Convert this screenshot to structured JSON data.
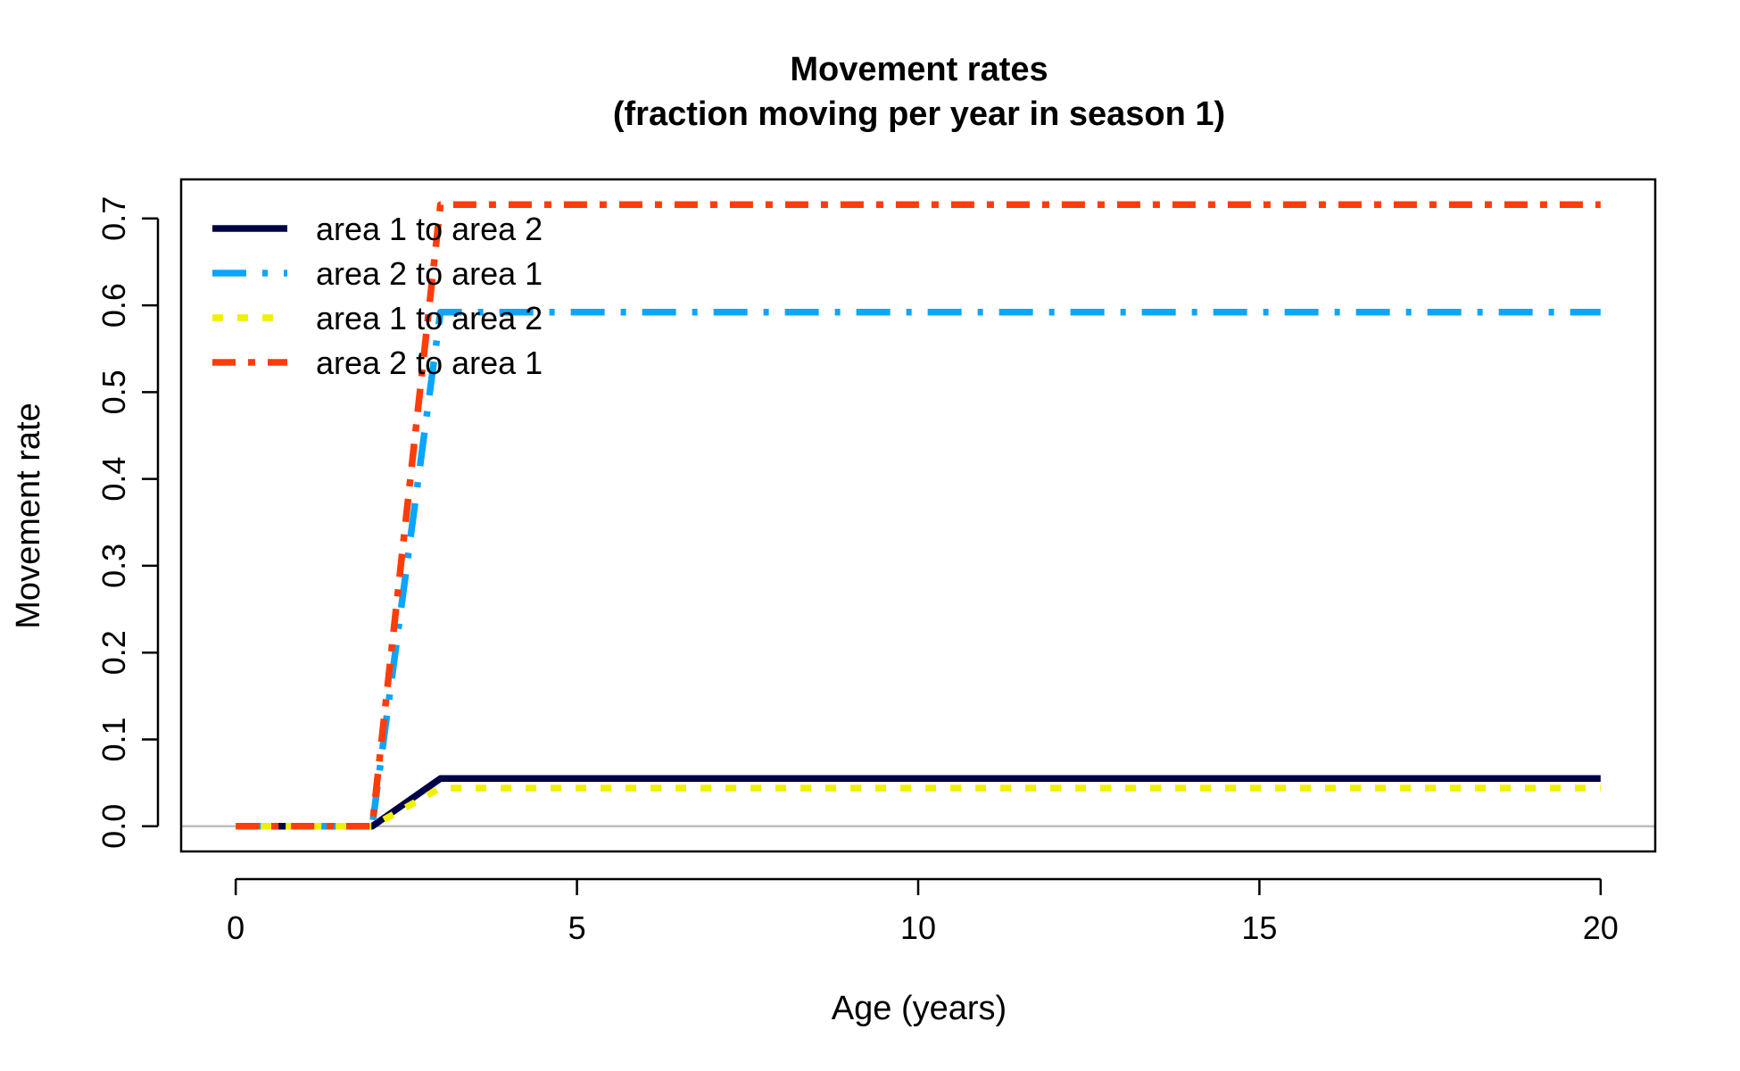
{
  "chart_data": {
    "type": "line",
    "title": "Movement rates",
    "subtitle": "(fraction moving per year in season 1)",
    "xlabel": "Age (years)",
    "ylabel": "Movement rate",
    "xlim": [
      -0.8,
      20.8
    ],
    "ylim": [
      -0.029,
      0.745
    ],
    "x_ticks": [
      0,
      5,
      10,
      15,
      20
    ],
    "x_tick_labels": [
      "0",
      "5",
      "10",
      "15",
      "20"
    ],
    "y_ticks": [
      0.0,
      0.1,
      0.2,
      0.3,
      0.4,
      0.5,
      0.6,
      0.7
    ],
    "y_tick_labels": [
      "0.0",
      "0.1",
      "0.2",
      "0.3",
      "0.4",
      "0.5",
      "0.6",
      "0.7"
    ],
    "grid": false,
    "reference_line": {
      "y": 0,
      "color": "#bebebe"
    },
    "legend_position": "top-left",
    "series": [
      {
        "name": "area 1 to area 2",
        "color": "#000046",
        "dash": "solid",
        "x": [
          0,
          2,
          3,
          20
        ],
        "y": [
          0,
          0,
          0.055,
          0.055
        ]
      },
      {
        "name": "area 2 to area 1",
        "color": "#0aa5ff",
        "dash": "longdash-dot",
        "x": [
          0,
          2,
          3,
          20
        ],
        "y": [
          0,
          0,
          0.592,
          0.592
        ]
      },
      {
        "name": "area 1 to area 2",
        "color": "#f0f000",
        "dash": "dotted",
        "x": [
          0,
          2,
          3,
          20
        ],
        "y": [
          0,
          0,
          0.044,
          0.044
        ]
      },
      {
        "name": "area 2 to area 1",
        "color": "#ff3c0a",
        "dash": "dashdot",
        "x": [
          0,
          2,
          3,
          20
        ],
        "y": [
          0,
          0,
          0.716,
          0.716
        ]
      }
    ]
  }
}
